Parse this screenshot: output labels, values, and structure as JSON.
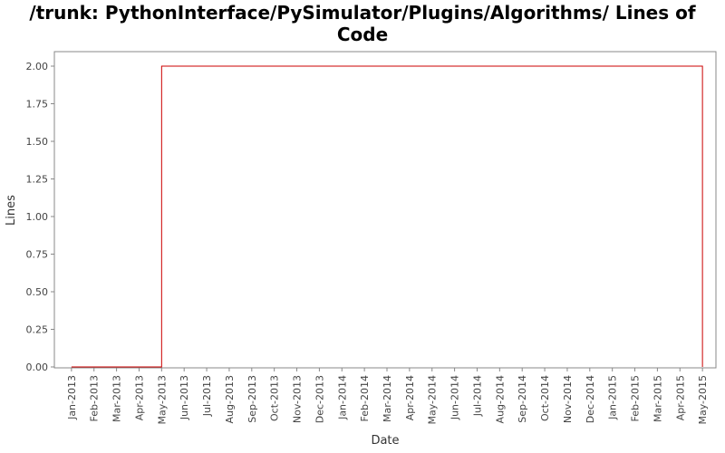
{
  "chart_data": {
    "type": "step",
    "title": "/trunk: PythonInterface/PySimulator/Plugins/Algorithms/ Lines of Code",
    "x_label": "Date",
    "y_label": "Lines",
    "x": [
      "2013-01",
      "2013-05",
      "2015-05"
    ],
    "values": [
      0,
      2,
      0
    ],
    "color": "#cc0000",
    "xlim": [
      "2012-12",
      "2015-06"
    ],
    "xticks": [
      {
        "value": "2013-01",
        "label": "Jan-2013"
      },
      {
        "value": "2013-02",
        "label": "Feb-2013"
      },
      {
        "value": "2013-03",
        "label": "Mar-2013"
      },
      {
        "value": "2013-04",
        "label": "Apr-2013"
      },
      {
        "value": "2013-05",
        "label": "May-2013"
      },
      {
        "value": "2013-06",
        "label": "Jun-2013"
      },
      {
        "value": "2013-07",
        "label": "Jul-2013"
      },
      {
        "value": "2013-08",
        "label": "Aug-2013"
      },
      {
        "value": "2013-09",
        "label": "Sep-2013"
      },
      {
        "value": "2013-10",
        "label": "Oct-2013"
      },
      {
        "value": "2013-11",
        "label": "Nov-2013"
      },
      {
        "value": "2013-12",
        "label": "Dec-2013"
      },
      {
        "value": "2014-01",
        "label": "Jan-2014"
      },
      {
        "value": "2014-02",
        "label": "Feb-2014"
      },
      {
        "value": "2014-03",
        "label": "Mar-2014"
      },
      {
        "value": "2014-04",
        "label": "Apr-2014"
      },
      {
        "value": "2014-05",
        "label": "May-2014"
      },
      {
        "value": "2014-06",
        "label": "Jun-2014"
      },
      {
        "value": "2014-07",
        "label": "Jul-2014"
      },
      {
        "value": "2014-08",
        "label": "Aug-2014"
      },
      {
        "value": "2014-09",
        "label": "Sep-2014"
      },
      {
        "value": "2014-10",
        "label": "Oct-2014"
      },
      {
        "value": "2014-11",
        "label": "Nov-2014"
      },
      {
        "value": "2014-12",
        "label": "Dec-2014"
      },
      {
        "value": "2015-01",
        "label": "Jan-2015"
      },
      {
        "value": "2015-02",
        "label": "Feb-2015"
      },
      {
        "value": "2015-03",
        "label": "Mar-2015"
      },
      {
        "value": "2015-04",
        "label": "Apr-2015"
      },
      {
        "value": "2015-05",
        "label": "May-2015"
      }
    ],
    "ylim": [
      0,
      2.1
    ],
    "yticks": [
      {
        "value": 0,
        "label": "0.00"
      },
      {
        "value": 0.25,
        "label": "0.25"
      },
      {
        "value": 0.5,
        "label": "0.50"
      },
      {
        "value": 0.75,
        "label": "0.75"
      },
      {
        "value": 1,
        "label": "1.00"
      },
      {
        "value": 1.25,
        "label": "1.25"
      },
      {
        "value": 1.5,
        "label": "1.50"
      },
      {
        "value": 1.75,
        "label": "1.75"
      },
      {
        "value": 2,
        "label": "2.00"
      }
    ],
    "grid": false
  }
}
